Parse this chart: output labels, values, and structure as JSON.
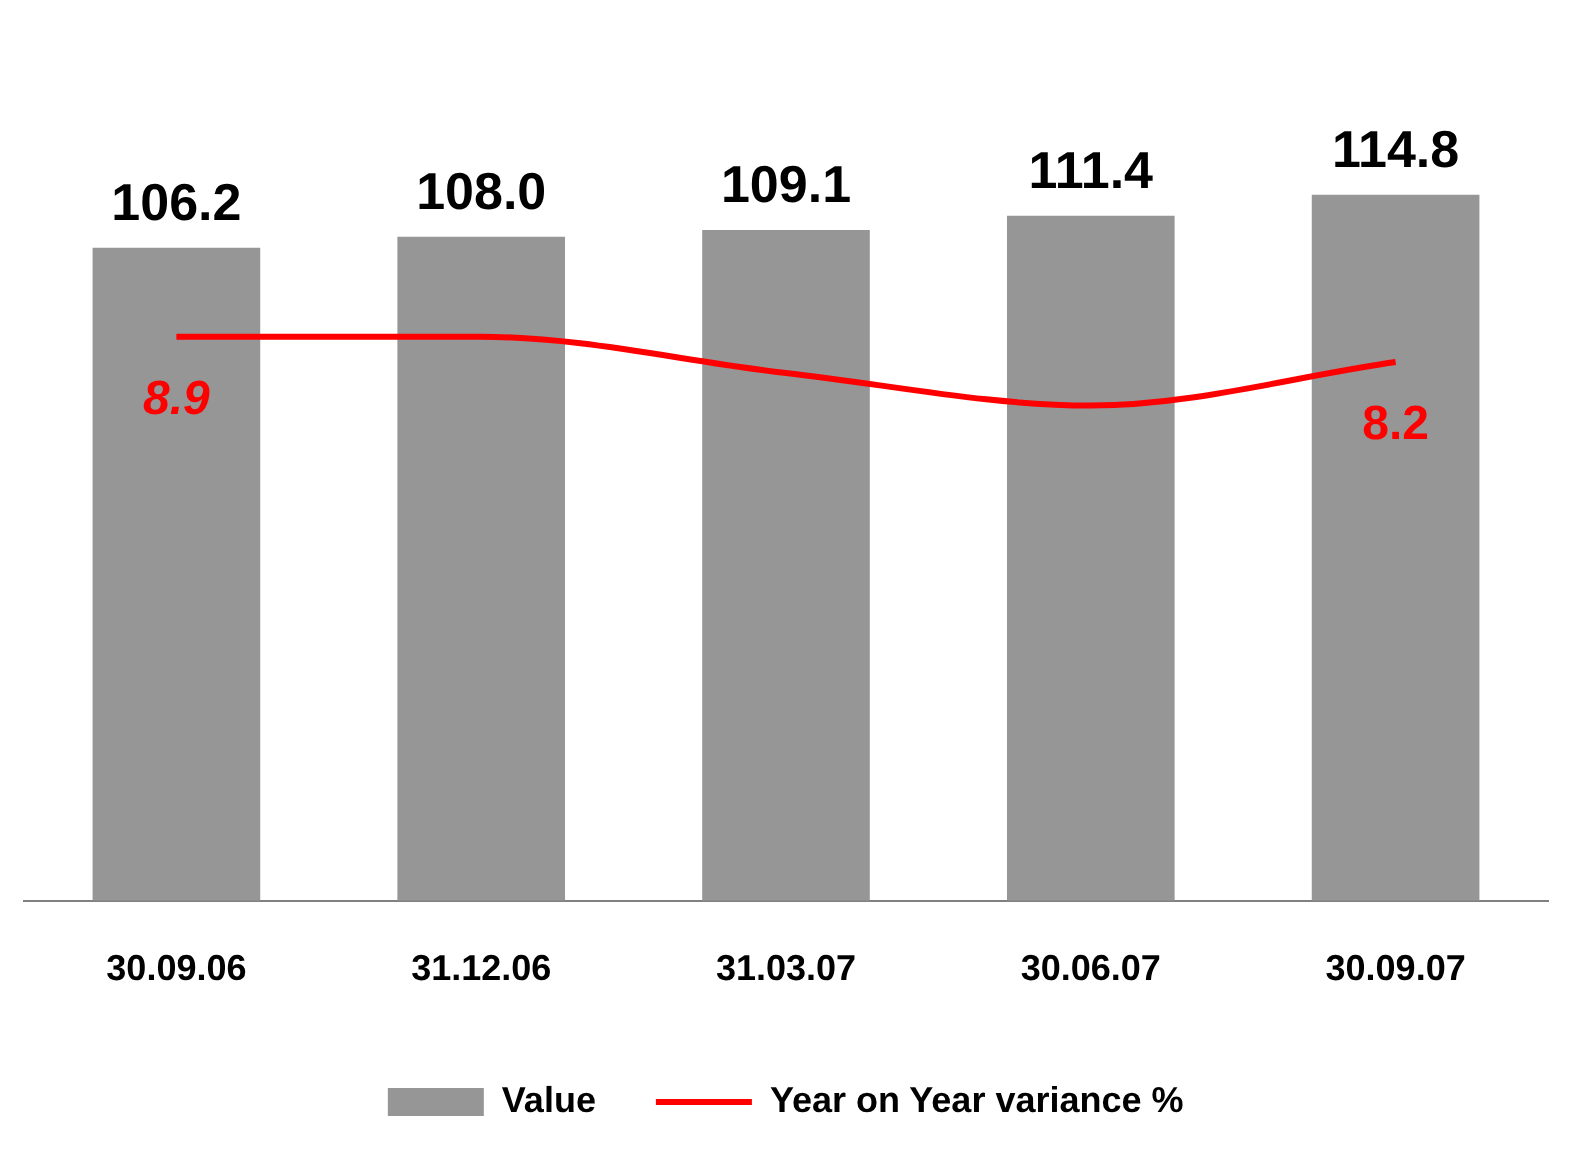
{
  "chart_data": {
    "type": "bar",
    "categories": [
      "30.09.06",
      "31.12.06",
      "31.03.07",
      "30.06.07",
      "30.09.07"
    ],
    "series": [
      {
        "name": "Value",
        "color": "#969696",
        "values": [
          106.2,
          108.0,
          109.1,
          111.4,
          114.8
        ],
        "value_labels": [
          "106.2",
          "108.0",
          "109.1",
          "111.4",
          "114.8"
        ]
      },
      {
        "name": "Year on Year variance %",
        "type": "line",
        "axis": "y2",
        "color": "#ff0000",
        "values": [
          8.9,
          8.9,
          7.9,
          7.0,
          8.2
        ],
        "value_labels": [
          "8.9",
          null,
          null,
          null,
          "8.2"
        ],
        "marker": "none"
      }
    ],
    "legend": "bottom",
    "grid": false
  }
}
